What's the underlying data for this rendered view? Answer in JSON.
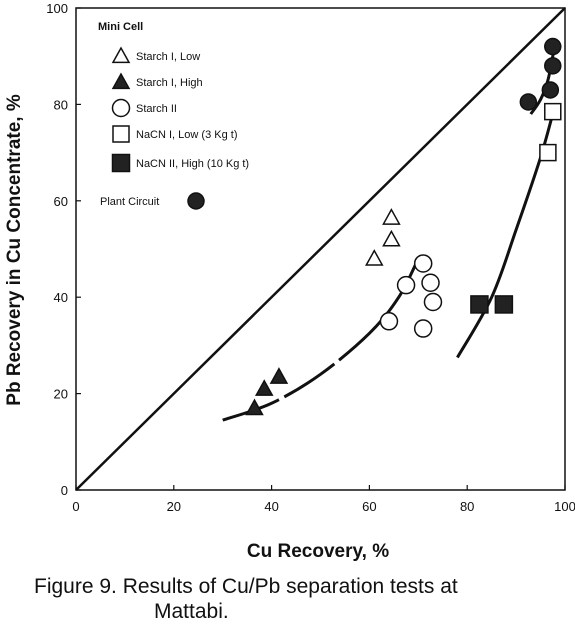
{
  "chart_data": {
    "type": "scatter",
    "xlabel": "Cu Recovery, %",
    "ylabel": "Pb Recovery in Cu Concentrate, %",
    "xlim": [
      0,
      100
    ],
    "ylim": [
      0,
      100
    ],
    "xticks": [
      "0",
      "20",
      "40",
      "60",
      "80",
      "100"
    ],
    "yticks": [
      "0",
      "20",
      "40",
      "60",
      "80",
      "100"
    ],
    "grid": false,
    "legend_title": "Mini Cell",
    "legend_position": "top-left",
    "diagonal_line": [
      [
        0,
        0
      ],
      [
        100,
        100
      ]
    ],
    "series": [
      {
        "name": "Starch I, Low",
        "marker": "triangle-open",
        "points": [
          [
            61,
            48
          ],
          [
            64.5,
            52
          ],
          [
            64.5,
            56.5
          ]
        ]
      },
      {
        "name": "Starch I, High",
        "marker": "triangle-filled",
        "points": [
          [
            36.5,
            17
          ],
          [
            38.5,
            21
          ],
          [
            41.5,
            23.5
          ]
        ]
      },
      {
        "name": "Starch II",
        "marker": "circle-open",
        "points": [
          [
            64,
            35
          ],
          [
            67.5,
            42.5
          ],
          [
            71,
            47
          ],
          [
            72.5,
            43
          ],
          [
            73,
            39
          ],
          [
            71,
            33.5
          ]
        ]
      },
      {
        "name": "NaCN I, Low (3 Kg  t)",
        "marker": "square-open",
        "points": [
          [
            96.5,
            70
          ],
          [
            97.5,
            78.5
          ]
        ]
      },
      {
        "name": "NaCN II, High (10 Kg  t)",
        "marker": "square-filled",
        "points": [
          [
            82.5,
            38.5
          ],
          [
            87.5,
            38.5
          ]
        ]
      },
      {
        "name": "Plant Circuit",
        "marker": "circle-filled",
        "points": [
          [
            92.5,
            80.5
          ],
          [
            97,
            83
          ],
          [
            97.5,
            88
          ],
          [
            97.5,
            92
          ]
        ]
      }
    ],
    "trend_curves": [
      [
        [
          30,
          14.5
        ],
        [
          40,
          18
        ],
        [
          50,
          24
        ],
        [
          60,
          32.5
        ],
        [
          66,
          40
        ],
        [
          70,
          48
        ]
      ],
      [
        [
          78,
          27.5
        ],
        [
          85,
          40
        ],
        [
          90,
          54
        ],
        [
          95,
          69
        ],
        [
          98,
          80
        ]
      ],
      [
        [
          93,
          78
        ],
        [
          95,
          81
        ],
        [
          96.5,
          85
        ],
        [
          97.5,
          90
        ],
        [
          98,
          93
        ]
      ]
    ],
    "caption": "Figure 9.  Results of Cu/Pb separation tests at Mattabi.",
    "caption_lines": [
      "Figure 9.  Results of Cu/Pb separation tests at",
      "Mattabi."
    ]
  }
}
